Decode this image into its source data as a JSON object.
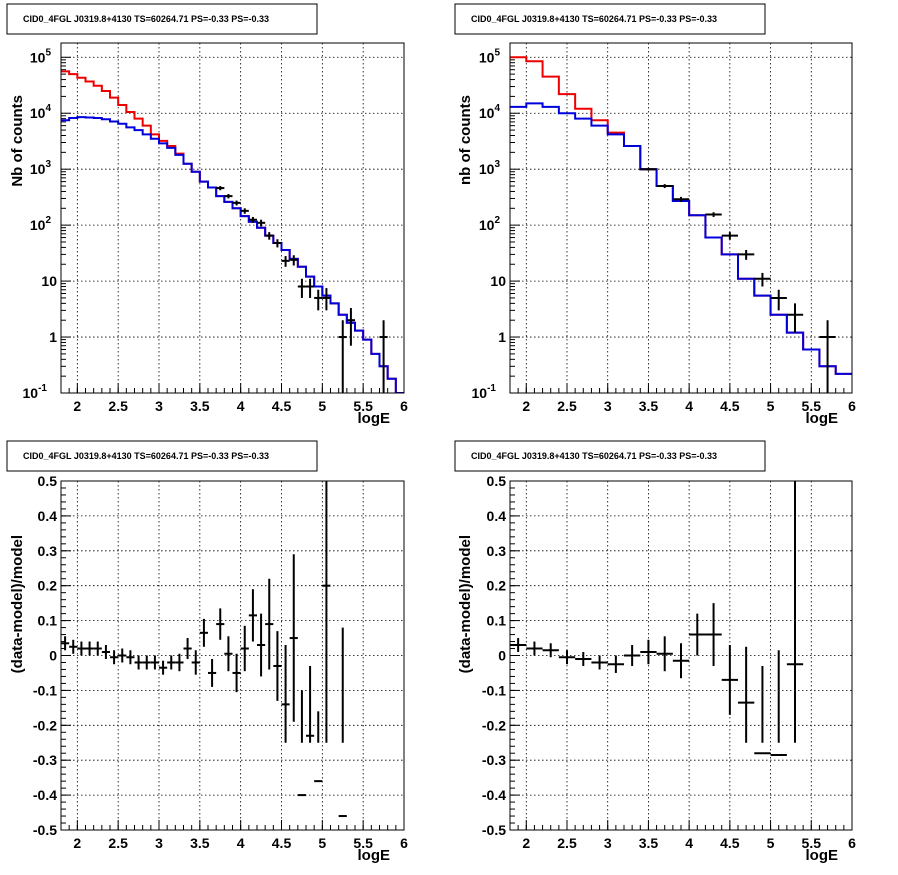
{
  "chart_data": [
    {
      "type": "line",
      "panel": "top-left",
      "title": "CID0_4FGL J0319.8+4130 TS=60264.71 PS=-0.33 PS=-0.33",
      "xlabel": "logE",
      "ylabel": "Nb of counts",
      "xlim": [
        1.8,
        6.0
      ],
      "ylim": [
        0.1,
        180000
      ],
      "yscale": "log",
      "xticks": [
        "2",
        "2.5",
        "3",
        "3.5",
        "4",
        "4.5",
        "5",
        "5.5",
        "6"
      ],
      "yticks": [
        "10^-1",
        "1",
        "10",
        "10^2",
        "10^3",
        "10^4",
        "10^5"
      ],
      "grid": true,
      "bin_edges": [
        1.8,
        1.9,
        2.0,
        2.1,
        2.2,
        2.3,
        2.4,
        2.5,
        2.6,
        2.7,
        2.8,
        2.9,
        3.0,
        3.1,
        3.2,
        3.3,
        3.4,
        3.5,
        3.6,
        3.7,
        3.8,
        3.9,
        4.0,
        4.1,
        4.2,
        4.3,
        4.4,
        4.5,
        4.6,
        4.7,
        4.8,
        4.9,
        5.0,
        5.1,
        5.2,
        5.3,
        5.4,
        5.5,
        5.6,
        5.7,
        5.8,
        5.9,
        6.0
      ],
      "series": [
        {
          "color": "#ee0000",
          "values": [
            56000,
            50000,
            43000,
            37000,
            31000,
            25000,
            19000,
            14000,
            10500,
            8000,
            6000,
            4200,
            3200,
            2600,
            1900,
            1250,
            900,
            600,
            470,
            330,
            260,
            200,
            145,
            115,
            90,
            65,
            48,
            36,
            25,
            18,
            12,
            8,
            5.5,
            4,
            2.5,
            1.8,
            1.3,
            0.9,
            0.5,
            0.3,
            0.18,
            0.1
          ]
        },
        {
          "color": "#0000dd",
          "values": [
            7500,
            8200,
            8500,
            8400,
            8200,
            7800,
            7100,
            6500,
            5600,
            5000,
            4200,
            3500,
            2900,
            2400,
            1800,
            1250,
            900,
            600,
            470,
            330,
            260,
            200,
            145,
            115,
            90,
            65,
            48,
            36,
            25,
            18,
            12,
            8,
            5.5,
            4,
            2.5,
            1.8,
            1.3,
            0.9,
            0.5,
            0.3,
            0.18,
            0.1
          ]
        }
      ],
      "points": [
        {
          "x": 3.75,
          "y": 460,
          "lo": 420,
          "hi": 500
        },
        {
          "x": 3.85,
          "y": 330,
          "lo": 300,
          "hi": 360
        },
        {
          "x": 3.95,
          "y": 250,
          "lo": 225,
          "hi": 275
        },
        {
          "x": 4.05,
          "y": 180,
          "lo": 160,
          "hi": 200
        },
        {
          "x": 4.15,
          "y": 125,
          "lo": 110,
          "hi": 140
        },
        {
          "x": 4.25,
          "y": 110,
          "lo": 95,
          "hi": 125
        },
        {
          "x": 4.35,
          "y": 65,
          "lo": 55,
          "hi": 75
        },
        {
          "x": 4.45,
          "y": 48,
          "lo": 40,
          "hi": 56
        },
        {
          "x": 4.55,
          "y": 23,
          "lo": 18,
          "hi": 28
        },
        {
          "x": 4.65,
          "y": 24,
          "lo": 19,
          "hi": 29
        },
        {
          "x": 4.75,
          "y": 8,
          "lo": 5,
          "hi": 11
        },
        {
          "x": 4.85,
          "y": 8,
          "lo": 5,
          "hi": 11
        },
        {
          "x": 4.95,
          "y": 5,
          "lo": 3,
          "hi": 7
        },
        {
          "x": 5.05,
          "y": 5,
          "lo": 3,
          "hi": 7.5
        },
        {
          "x": 5.25,
          "y": 1,
          "lo": 0.1,
          "hi": 2
        },
        {
          "x": 5.35,
          "y": 2,
          "lo": 0.7,
          "hi": 3.3
        },
        {
          "x": 5.75,
          "y": 1,
          "lo": 0.1,
          "hi": 2
        }
      ]
    },
    {
      "type": "line",
      "panel": "top-right",
      "title": "CID0_4FGL J0319.8+4130 TS=60264.71 PS=-0.33 PS=-0.33",
      "xlabel": "logE",
      "ylabel": "nb of counts",
      "xlim": [
        1.8,
        6.0
      ],
      "ylim": [
        0.1,
        180000
      ],
      "yscale": "log",
      "xticks": [
        "2",
        "2.5",
        "3",
        "3.5",
        "4",
        "4.5",
        "5",
        "5.5",
        "6"
      ],
      "yticks": [
        "10^-1",
        "1",
        "10",
        "10^2",
        "10^3",
        "10^4",
        "10^5"
      ],
      "grid": true,
      "bin_edges": [
        1.8,
        2.0,
        2.2,
        2.4,
        2.6,
        2.8,
        3.0,
        3.2,
        3.4,
        3.6,
        3.8,
        4.0,
        4.2,
        4.4,
        4.6,
        4.8,
        5.0,
        5.2,
        5.4,
        5.6,
        5.8,
        6.0
      ],
      "series": [
        {
          "color": "#ee0000",
          "values": [
            100000,
            85000,
            45000,
            22000,
            12000,
            7500,
            4500,
            2600,
            1000,
            500,
            270,
            150,
            60,
            30,
            11,
            5.5,
            2.5,
            1.2,
            0.6,
            0.3,
            0.22
          ]
        },
        {
          "color": "#0000dd",
          "values": [
            13000,
            15000,
            13000,
            10000,
            8000,
            6000,
            4200,
            2600,
            1000,
            500,
            270,
            150,
            60,
            30,
            11,
            5.5,
            2.5,
            1.2,
            0.6,
            0.3,
            0.22
          ]
        }
      ],
      "points": [
        {
          "x": 3.5,
          "y": 1000,
          "lo": 940,
          "hi": 1060
        },
        {
          "x": 3.7,
          "y": 500,
          "lo": 460,
          "hi": 540
        },
        {
          "x": 3.9,
          "y": 290,
          "lo": 260,
          "hi": 320
        },
        {
          "x": 4.3,
          "y": 155,
          "lo": 140,
          "hi": 170
        },
        {
          "x": 4.5,
          "y": 65,
          "lo": 55,
          "hi": 75
        },
        {
          "x": 4.7,
          "y": 30,
          "lo": 24,
          "hi": 36
        },
        {
          "x": 4.9,
          "y": 11,
          "lo": 8,
          "hi": 14
        },
        {
          "x": 5.1,
          "y": 5,
          "lo": 3,
          "hi": 7
        },
        {
          "x": 5.3,
          "y": 2.5,
          "lo": 1.2,
          "hi": 4
        },
        {
          "x": 5.7,
          "y": 1,
          "lo": 0.1,
          "hi": 2
        }
      ]
    },
    {
      "type": "scatter",
      "panel": "bottom-left",
      "title": "CID0_4FGL J0319.8+4130 TS=60264.71 PS=-0.33 PS=-0.33",
      "xlabel": "logE",
      "ylabel": "(data-model)/model",
      "xlim": [
        1.8,
        6.0
      ],
      "ylim": [
        -0.5,
        0.5
      ],
      "xticks": [
        "2",
        "2.5",
        "3",
        "3.5",
        "4",
        "4.5",
        "5",
        "5.5",
        "6"
      ],
      "yticks": [
        "-0.5",
        "-0.4",
        "-0.3",
        "-0.2",
        "-0.1",
        "0",
        "0.1",
        "0.2",
        "0.3",
        "0.4",
        "0.5"
      ],
      "grid": true,
      "points": [
        {
          "x": 1.85,
          "y": 0.035,
          "e": 0.02,
          "hw": 0.05
        },
        {
          "x": 1.95,
          "y": 0.025,
          "e": 0.02,
          "hw": 0.05
        },
        {
          "x": 2.05,
          "y": 0.02,
          "e": 0.02,
          "hw": 0.05
        },
        {
          "x": 2.15,
          "y": 0.02,
          "e": 0.02,
          "hw": 0.05
        },
        {
          "x": 2.25,
          "y": 0.02,
          "e": 0.02,
          "hw": 0.05
        },
        {
          "x": 2.35,
          "y": 0.01,
          "e": 0.02,
          "hw": 0.05
        },
        {
          "x": 2.45,
          "y": -0.005,
          "e": 0.02,
          "hw": 0.05
        },
        {
          "x": 2.55,
          "y": 0.0,
          "e": 0.02,
          "hw": 0.05
        },
        {
          "x": 2.65,
          "y": -0.005,
          "e": 0.02,
          "hw": 0.05
        },
        {
          "x": 2.75,
          "y": -0.02,
          "e": 0.02,
          "hw": 0.05
        },
        {
          "x": 2.85,
          "y": -0.02,
          "e": 0.02,
          "hw": 0.05
        },
        {
          "x": 2.95,
          "y": -0.02,
          "e": 0.02,
          "hw": 0.05
        },
        {
          "x": 3.05,
          "y": -0.035,
          "e": 0.02,
          "hw": 0.05
        },
        {
          "x": 3.15,
          "y": -0.02,
          "e": 0.02,
          "hw": 0.05
        },
        {
          "x": 3.25,
          "y": -0.02,
          "e": 0.025,
          "hw": 0.05
        },
        {
          "x": 3.35,
          "y": 0.02,
          "e": 0.03,
          "hw": 0.05
        },
        {
          "x": 3.45,
          "y": -0.02,
          "e": 0.035,
          "hw": 0.05
        },
        {
          "x": 3.55,
          "y": 0.065,
          "e": 0.04,
          "hw": 0.05
        },
        {
          "x": 3.65,
          "y": -0.05,
          "e": 0.04,
          "hw": 0.05
        },
        {
          "x": 3.75,
          "y": 0.09,
          "e": 0.045,
          "hw": 0.05
        },
        {
          "x": 3.85,
          "y": 0.005,
          "e": 0.05,
          "hw": 0.05
        },
        {
          "x": 3.95,
          "y": -0.05,
          "e": 0.055,
          "hw": 0.05
        },
        {
          "x": 4.05,
          "y": 0.02,
          "e": 0.065,
          "hw": 0.05
        },
        {
          "x": 4.15,
          "y": 0.115,
          "e": 0.075,
          "hw": 0.05
        },
        {
          "x": 4.25,
          "y": 0.03,
          "e": 0.09,
          "hw": 0.05
        },
        {
          "x": 4.35,
          "y": 0.09,
          "e": 0.13,
          "hw": 0.05
        },
        {
          "x": 4.45,
          "y": -0.03,
          "e": 0.1,
          "hw": 0.05
        },
        {
          "x": 4.55,
          "y": -0.14,
          "e": 0.17,
          "hw": 0.05
        },
        {
          "x": 4.65,
          "y": 0.05,
          "e": 0.24,
          "hw": 0.05
        },
        {
          "x": 4.75,
          "y": -0.4,
          "e": 0.3,
          "hw": 0.05
        },
        {
          "x": 4.85,
          "y": -0.23,
          "e": 0.2,
          "hw": 0.05
        },
        {
          "x": 4.95,
          "y": -0.36,
          "e": 0.2,
          "hw": 0.05
        },
        {
          "x": 5.05,
          "y": 0.2,
          "e": 0.7,
          "hw": 0.05
        },
        {
          "x": 5.25,
          "y": -0.46,
          "e": 0.54,
          "hw": 0.05
        }
      ]
    },
    {
      "type": "scatter",
      "panel": "bottom-right",
      "title": "CID0_4FGL J0319.8+4130 TS=60264.71 PS=-0.33 PS=-0.33",
      "xlabel": "logE",
      "ylabel": "(data-model)/model",
      "xlim": [
        1.8,
        6.0
      ],
      "ylim": [
        -0.5,
        0.5
      ],
      "xticks": [
        "2",
        "2.5",
        "3",
        "3.5",
        "4",
        "4.5",
        "5",
        "5.5",
        "6"
      ],
      "yticks": [
        "-0.5",
        "-0.4",
        "-0.3",
        "-0.2",
        "-0.1",
        "0",
        "0.1",
        "0.2",
        "0.3",
        "0.4",
        "0.5"
      ],
      "grid": true,
      "points": [
        {
          "x": 1.9,
          "y": 0.03,
          "e": 0.02,
          "hw": 0.1
        },
        {
          "x": 2.1,
          "y": 0.02,
          "e": 0.02,
          "hw": 0.1
        },
        {
          "x": 2.3,
          "y": 0.015,
          "e": 0.02,
          "hw": 0.1
        },
        {
          "x": 2.5,
          "y": -0.005,
          "e": 0.02,
          "hw": 0.1
        },
        {
          "x": 2.7,
          "y": -0.01,
          "e": 0.02,
          "hw": 0.1
        },
        {
          "x": 2.9,
          "y": -0.02,
          "e": 0.02,
          "hw": 0.1
        },
        {
          "x": 3.1,
          "y": -0.025,
          "e": 0.025,
          "hw": 0.1
        },
        {
          "x": 3.3,
          "y": 0.0,
          "e": 0.03,
          "hw": 0.1
        },
        {
          "x": 3.5,
          "y": 0.01,
          "e": 0.035,
          "hw": 0.1
        },
        {
          "x": 3.7,
          "y": 0.005,
          "e": 0.05,
          "hw": 0.1
        },
        {
          "x": 3.9,
          "y": -0.015,
          "e": 0.05,
          "hw": 0.1
        },
        {
          "x": 4.1,
          "y": 0.06,
          "e": 0.06,
          "hw": 0.1
        },
        {
          "x": 4.3,
          "y": 0.06,
          "e": 0.09,
          "hw": 0.1
        },
        {
          "x": 4.5,
          "y": -0.07,
          "e": 0.1,
          "hw": 0.1
        },
        {
          "x": 4.7,
          "y": -0.135,
          "e": 0.16,
          "hw": 0.1
        },
        {
          "x": 4.9,
          "y": -0.28,
          "e": 0.25,
          "hw": 0.1
        },
        {
          "x": 5.1,
          "y": -0.285,
          "e": 0.3,
          "hw": 0.1
        },
        {
          "x": 5.3,
          "y": -0.025,
          "e": 0.53,
          "hw": 0.1
        }
      ]
    }
  ]
}
